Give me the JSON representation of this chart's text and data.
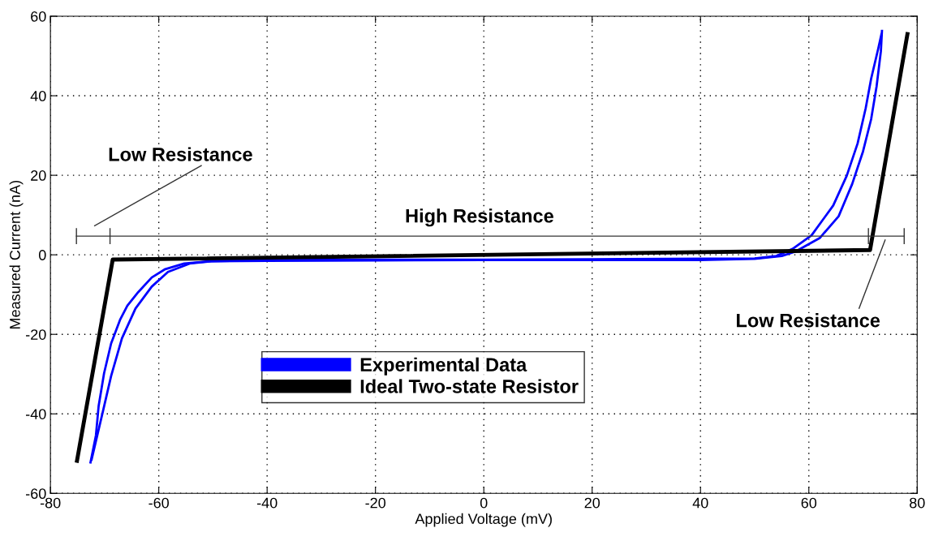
{
  "chart_data": {
    "type": "line",
    "xlabel": "Applied Voltage (mV)",
    "ylabel": "Measured Current (nA)",
    "xlim": [
      -80,
      80
    ],
    "xticks": [
      -80,
      -60,
      -40,
      -20,
      0,
      20,
      40,
      60,
      80
    ],
    "ylim": [
      -60,
      60
    ],
    "yticks": [
      -60,
      -40,
      -20,
      0,
      20,
      40,
      60
    ],
    "grid": true,
    "legend": "bottom",
    "line_style": "solid",
    "marker": "none",
    "series": [
      {
        "name": "Experimental Data",
        "color": "#0000ff",
        "x": [
          -72.6,
          -71.6,
          -71.1,
          -70.1,
          -68.8,
          -67.1,
          -65.8,
          -63.8,
          -61.3,
          -58.8,
          -55.3,
          -50.3,
          -40,
          -20,
          0,
          20,
          40,
          50,
          55,
          57.5,
          62.0,
          65.5,
          68.0,
          70.0,
          71.5,
          72.5,
          73.3,
          73.5
        ],
        "values": [
          -52.2,
          -45.4,
          -38.0,
          -29.8,
          -22.3,
          -16.2,
          -12.8,
          -9.4,
          -5.7,
          -3.6,
          -2.2,
          -1.6,
          -1.5,
          -1.4,
          -1.3,
          -1.3,
          -1.3,
          -1.0,
          -0.3,
          0.8,
          4.2,
          9.7,
          17.8,
          26.0,
          34.1,
          42.3,
          51.2,
          56.3
        ]
      },
      {
        "color": "#0000ff",
        "x": [
          73.4,
          72.8,
          71.5,
          70.5,
          69.0,
          67.0,
          64.5,
          60.5,
          57.0,
          54,
          50,
          20,
          0,
          -20,
          -40,
          -50.3,
          -54.3,
          -58.3,
          -61.3,
          -64.3,
          -66.8,
          -68.8,
          -70.3,
          -72.4
        ],
        "values": [
          55.5,
          51.8,
          44.3,
          36.9,
          28.0,
          19.9,
          12.4,
          4.9,
          1.5,
          -0.3,
          -0.9,
          -1.1,
          -1.2,
          -1.2,
          -1.3,
          -1.6,
          -2.2,
          -4.3,
          -8.0,
          -13.5,
          -21.0,
          -30.5,
          -39.3,
          -51.5
        ]
      },
      {
        "name": "Ideal Two-state Resistor",
        "color": "#000000",
        "x": [
          -75.1,
          -68.5,
          71.3,
          78.2
        ],
        "values": [
          -51.8,
          -1.2,
          1.2,
          55.5
        ]
      },
      {
        "color": "#333333",
        "x": [
          -75.2,
          -69,
          71,
          77.6
        ],
        "values": [
          4.7,
          4.7,
          4.7,
          4.7
        ],
        "errors": [
          2,
          2,
          2,
          2
        ]
      }
    ],
    "annotations": [
      "Low Resistance",
      "High Resistance",
      "Low Resistance"
    ]
  }
}
